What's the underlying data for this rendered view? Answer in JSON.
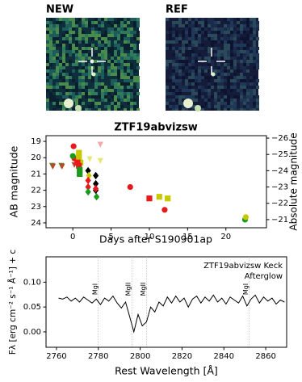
{
  "cutouts": {
    "new_label": "NEW",
    "ref_label": "REF"
  },
  "chart_data": [
    {
      "type": "scatter",
      "title": "ZTF19abvizsw",
      "xlabel": "Days after S190901ap",
      "ylabel": "AB magnitude",
      "y2label": "Absolute magnitude",
      "y_inverted": true,
      "xlim": [
        -3.5,
        25.3
      ],
      "xticks": [
        0,
        5,
        10,
        15,
        20
      ],
      "ylim": [
        18.65,
        24.3
      ],
      "yticks": [
        19,
        20,
        21,
        22,
        23,
        24
      ],
      "y2lim": [
        -26.15,
        -20.5
      ],
      "y2ticks": [
        {
          "value": -26,
          "label": "−26"
        },
        {
          "value": -25,
          "label": "−25"
        },
        {
          "value": -24,
          "label": "−24"
        },
        {
          "value": -23,
          "label": "−23"
        },
        {
          "value": -22,
          "label": "−22"
        },
        {
          "value": -21,
          "label": "−21"
        }
      ],
      "series": [
        {
          "color": "#4a8a2a",
          "marker": "triangle-down",
          "x": [
            -2.7,
            -1.5
          ],
          "values": [
            20.5,
            20.5
          ]
        },
        {
          "color": "#b84a2a",
          "marker": "triangle-down",
          "x": [
            -2.6,
            -1.4,
            0.2
          ],
          "values": [
            20.55,
            20.55,
            20.45
          ]
        },
        {
          "color": "#f4a8a8",
          "marker": "triangle-down",
          "x": [
            3.6
          ],
          "values": [
            19.2
          ]
        },
        {
          "color": "#e6e67a",
          "marker": "triangle-down",
          "x": [
            2.2,
            3.6
          ],
          "values": [
            20.1,
            20.2
          ]
        },
        {
          "color": "#e8191c",
          "marker": "circle",
          "x": [
            0.1,
            0.2,
            7.5,
            12.0
          ],
          "values": [
            19.3,
            20.05,
            21.8,
            23.2
          ]
        },
        {
          "color": "#1a9a1a",
          "marker": "circle",
          "x": [
            0.0,
            22.5
          ],
          "values": [
            19.9,
            23.8
          ]
        },
        {
          "color": "#c8c800",
          "marker": "circle",
          "x": [
            22.6
          ],
          "values": [
            23.65
          ]
        },
        {
          "color": "#c8c800",
          "marker": "square",
          "x": [
            0.8,
            0.8,
            1.0,
            11.3,
            12.4
          ],
          "values": [
            19.7,
            20.0,
            20.3,
            22.4,
            22.5
          ]
        },
        {
          "color": "#e8191c",
          "marker": "square",
          "x": [
            0.6,
            0.8,
            10.0
          ],
          "values": [
            20.3,
            20.5,
            22.5
          ]
        },
        {
          "color": "#1a9a1a",
          "marker": "square",
          "x": [
            0.9,
            0.9
          ],
          "values": [
            20.75,
            21.0
          ]
        },
        {
          "color": "#000000",
          "marker": "diamond",
          "x": [
            2.0,
            3.0,
            3.0,
            3.0
          ],
          "values": [
            20.8,
            21.1,
            21.6,
            22.0
          ]
        },
        {
          "color": "#c8c800",
          "marker": "diamond",
          "x": [
            2.1
          ],
          "values": [
            21.1
          ]
        },
        {
          "color": "#e8191c",
          "marker": "diamond",
          "x": [
            2.0,
            2.0,
            3.0
          ],
          "values": [
            21.4,
            21.8,
            21.9
          ]
        },
        {
          "color": "#1a9a1a",
          "marker": "diamond",
          "x": [
            2.0,
            3.1
          ],
          "values": [
            22.1,
            22.4
          ]
        }
      ]
    },
    {
      "type": "line",
      "xlabel": "Rest Wavelength [Å]",
      "ylabel": "Fλ [erg cm⁻² s⁻¹ Å⁻¹] + c",
      "annotation": [
        "ZTF19abvizsw Keck",
        "Afterglow"
      ],
      "color": "#000000",
      "xlim": [
        2755,
        2870
      ],
      "xticks": [
        2760,
        2780,
        2800,
        2820,
        2840,
        2860
      ],
      "ylim": [
        -0.031,
        0.151
      ],
      "yticks": [
        {
          "value": 0,
          "label": "0.00"
        },
        {
          "value": 0.05,
          "label": "0.05"
        },
        {
          "value": 0.1,
          "label": "0.10"
        }
      ],
      "lines": [
        {
          "label": "MgI",
          "x": 2780
        },
        {
          "label": "MgII",
          "x": 2796
        },
        {
          "label": "MgII",
          "x": 2803
        },
        {
          "label": "MgI",
          "x": 2852
        }
      ],
      "x": [
        2761,
        2763,
        2765,
        2767,
        2769,
        2771,
        2773,
        2775,
        2777,
        2779,
        2781,
        2783,
        2785,
        2787,
        2789,
        2791,
        2793,
        2795,
        2797,
        2799,
        2801,
        2803,
        2805,
        2807,
        2809,
        2811,
        2813,
        2815,
        2817,
        2819,
        2821,
        2823,
        2825,
        2827,
        2829,
        2831,
        2833,
        2835,
        2837,
        2839,
        2841,
        2843,
        2845,
        2847,
        2849,
        2851,
        2853,
        2855,
        2857,
        2859,
        2861,
        2863,
        2865,
        2867,
        2869
      ],
      "values": [
        0.068,
        0.066,
        0.07,
        0.062,
        0.068,
        0.06,
        0.07,
        0.064,
        0.058,
        0.066,
        0.055,
        0.068,
        0.062,
        0.072,
        0.058,
        0.048,
        0.06,
        0.03,
        0.0,
        0.035,
        0.012,
        0.02,
        0.05,
        0.04,
        0.06,
        0.052,
        0.07,
        0.058,
        0.072,
        0.06,
        0.068,
        0.05,
        0.066,
        0.072,
        0.058,
        0.07,
        0.062,
        0.074,
        0.06,
        0.068,
        0.056,
        0.07,
        0.064,
        0.058,
        0.072,
        0.052,
        0.066,
        0.074,
        0.058,
        0.07,
        0.062,
        0.068,
        0.056,
        0.064,
        0.06
      ]
    }
  ]
}
